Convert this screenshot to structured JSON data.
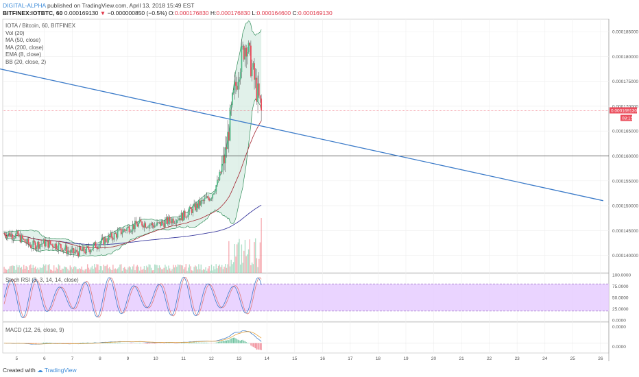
{
  "header": {
    "author": "DIGITAL-ALPHA",
    "published_text": " published on TradingView.com, April 13, 2018 15:49 EST",
    "symbol": "BITFINEX:IOTBTC, 60",
    "last": "0.000169130",
    "change": "−0.000000850 (−0.5%)",
    "o_label": "O:",
    "o_value": "0.000176830",
    "h_label": "H:",
    "h_value": "0.000176830",
    "l_label": "L:",
    "l_value": "0.000164600",
    "c_label": "C:",
    "c_value": "0.000169130"
  },
  "legend": {
    "title": "IOTA / Bitcoin, 60, BITFINEX",
    "vol": "Vol (20)",
    "ma50": "MA (50, close)",
    "ma200": "MA (200, close)",
    "ema": "EMA (8, close)",
    "bb": "BB (20, close, 2)"
  },
  "stoch_label": "Stoch RSI (3, 3, 14, 14, close)",
  "macd_label": "MACD (12, 26, close, 9)",
  "footer": {
    "created": "Created with",
    "brand": "TradingView"
  },
  "colors": {
    "up": "#53b987",
    "down": "#eb4d5c",
    "trendline": "#3d7cc9",
    "ma50": "#a3242f",
    "ma200": "#3a3a9e",
    "bb": "#2e8b57",
    "bb_fill": "#c8e6d8",
    "stoch_k": "#3d7cc9",
    "stoch_d": "#e07a7a",
    "stoch_band": "#e6ccff"
  },
  "chart_data": [
    {
      "type": "candlestick",
      "name": "IOTA / Bitcoin, 60, BITFINEX",
      "x_labels": [
        "5",
        "6",
        "7",
        "8",
        "9",
        "10",
        "11",
        "12",
        "13",
        "14",
        "15",
        "16",
        "17",
        "18",
        "19",
        "20",
        "21",
        "22",
        "23",
        "24",
        "25",
        "26"
      ],
      "y_ticks": [
        "0.000140000",
        "0.000145000",
        "0.000150000",
        "0.000155000",
        "0.000160000",
        "0.000165000",
        "0.000170000",
        "0.000175000",
        "0.000180000",
        "0.000185000"
      ],
      "ylim": [
        0.0001365,
        0.0001875
      ],
      "last_price": "0.000169130",
      "countdown": "08:15",
      "horizontal_line": 0.00016,
      "price_path": [
        [
          4.5,
          0.0001445
        ],
        [
          5,
          0.000144
        ],
        [
          5.5,
          0.000142
        ],
        [
          6,
          0.0001425
        ],
        [
          6.5,
          0.000142
        ],
        [
          7,
          0.0001405
        ],
        [
          7.5,
          0.000141
        ],
        [
          8,
          0.0001425
        ],
        [
          8.5,
          0.000144
        ],
        [
          9,
          0.0001455
        ],
        [
          9.5,
          0.0001465
        ],
        [
          10,
          0.000146
        ],
        [
          10.5,
          0.000147
        ],
        [
          11,
          0.000148
        ],
        [
          11.5,
          0.00015
        ],
        [
          12,
          0.000152
        ],
        [
          12.25,
          0.000155
        ],
        [
          12.5,
          0.00016
        ],
        [
          12.75,
          0.00017
        ],
        [
          13,
          0.000178
        ],
        [
          13.25,
          0.000183
        ],
        [
          13.5,
          0.0001765
        ],
        [
          13.8,
          0.0001691
        ]
      ],
      "trendline": [
        [
          4.4,
          0.0001775
        ],
        [
          26.1,
          0.000151
        ]
      ]
    },
    {
      "type": "line",
      "name": "Stoch RSI (3, 3, 14, 14, close)",
      "y_ticks": [
        "100.0000",
        "75.0000",
        "50.0000",
        "25.0000",
        "0.0000"
      ],
      "ylim": [
        0,
        100
      ],
      "band": [
        20,
        80
      ]
    },
    {
      "type": "line",
      "name": "MACD (12, 26, close, 9)",
      "y_ticks": [
        "0.0000",
        "0.0000"
      ]
    }
  ]
}
